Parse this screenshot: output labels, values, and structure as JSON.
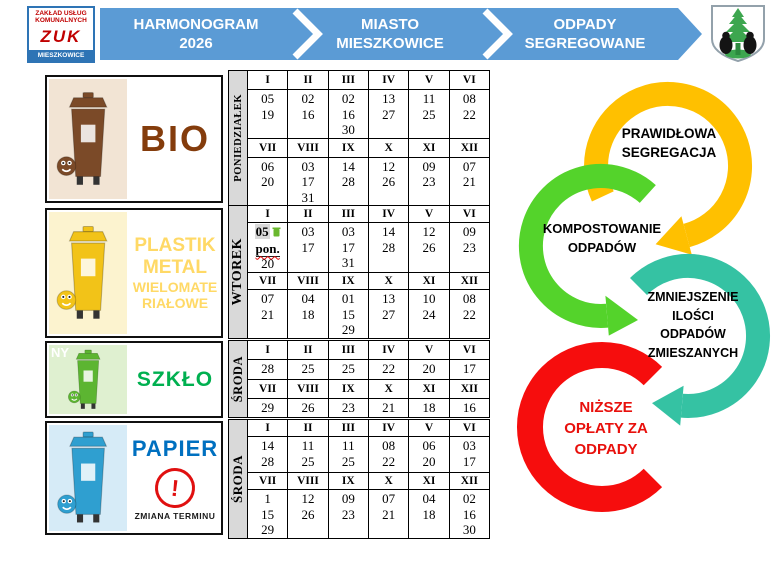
{
  "header": {
    "logo": {
      "line1": "ZAKŁAD USŁUG",
      "line2": "KOMUNALNYCH",
      "acronym": "ZUK",
      "city": "MIESZKOWICE"
    },
    "arrows": [
      {
        "line1": "HARMONOGRAM",
        "line2": "2026"
      },
      {
        "line1": "MIASTO",
        "line2": "MIESZKOWICE"
      },
      {
        "line1": "ODPADY",
        "line2": "SEGREGOWANE"
      }
    ],
    "banner_color": "#5b9bd5"
  },
  "waste_sections": [
    {
      "id": "bio",
      "label_lines": [
        "BIO"
      ],
      "day": "PONIEDZIAŁEK",
      "bin_color": "#7b4a28",
      "bin_bg": "#f2e4d4",
      "months_top": [
        "I",
        "II",
        "III",
        "IV",
        "V",
        "VI"
      ],
      "dates_top": [
        [
          "05",
          "19"
        ],
        [
          "02",
          "16"
        ],
        [
          "02",
          "16",
          "30"
        ],
        [
          "13",
          "27"
        ],
        [
          "11",
          "25"
        ],
        [
          "08",
          "22"
        ]
      ],
      "months_bottom": [
        "VII",
        "VIII",
        "IX",
        "X",
        "XI",
        "XII"
      ],
      "dates_bottom": [
        [
          "06",
          "20"
        ],
        [
          "03",
          "17",
          "31"
        ],
        [
          "14",
          "28"
        ],
        [
          "12",
          "26"
        ],
        [
          "09",
          "23"
        ],
        [
          "07",
          "21"
        ]
      ]
    },
    {
      "id": "plastik",
      "label_lines": [
        "PLASTIK",
        "METAL",
        "WIELOMATE",
        "RIAŁOWE"
      ],
      "day": "WTOREK",
      "bin_color": "#f2c318",
      "bin_bg": "#fcf3cf",
      "months_top": [
        "I",
        "II",
        "III",
        "IV",
        "V",
        "VI"
      ],
      "dates_top": [
        [
          "05",
          "pon.",
          "20"
        ],
        [
          "03",
          "17"
        ],
        [
          "03",
          "17",
          "31"
        ],
        [
          "14",
          "28"
        ],
        [
          "12",
          "26"
        ],
        [
          "09",
          "23"
        ]
      ],
      "special_cell": {
        "row": "top",
        "col": 0,
        "highlight": "05",
        "note": "pon.",
        "plain": "20",
        "icon": "green-bin-icon",
        "icon_color": "#6ab82e"
      },
      "months_bottom": [
        "VII",
        "VIII",
        "IX",
        "X",
        "XI",
        "XII"
      ],
      "dates_bottom": [
        [
          "07",
          "21"
        ],
        [
          "04",
          "18"
        ],
        [
          "01",
          "15",
          "29"
        ],
        [
          "13",
          "27"
        ],
        [
          "10",
          "24"
        ],
        [
          "08",
          "22"
        ]
      ]
    },
    {
      "id": "szklo",
      "label_lines": [
        "SZKŁO"
      ],
      "day": "ŚRODA",
      "overlay": "NY",
      "bin_color": "#5cb531",
      "bin_bg": "#dff0d0",
      "months_top": [
        "I",
        "II",
        "III",
        "IV",
        "V",
        "VI"
      ],
      "dates_top": [
        [
          "28"
        ],
        [
          "25"
        ],
        [
          "25"
        ],
        [
          "22"
        ],
        [
          "20"
        ],
        [
          "17"
        ]
      ],
      "months_bottom": [
        "VII",
        "VIII",
        "IX",
        "X",
        "XI",
        "XII"
      ],
      "dates_bottom": [
        [
          "29"
        ],
        [
          "26"
        ],
        [
          "23"
        ],
        [
          "21"
        ],
        [
          "18"
        ],
        [
          "16"
        ]
      ]
    },
    {
      "id": "papier",
      "label_lines": [
        "PAPIER"
      ],
      "day": "ŚRODA",
      "alert": "ZMIANA TERMINU",
      "bin_color": "#2f9fd0",
      "bin_bg": "#d6ebf7",
      "months_top": [
        "I",
        "II",
        "III",
        "IV",
        "V",
        "VI"
      ],
      "dates_top": [
        [
          "14",
          "28"
        ],
        [
          "11",
          "25"
        ],
        [
          "11",
          "25"
        ],
        [
          "08",
          "22"
        ],
        [
          "06",
          "20"
        ],
        [
          "03",
          "17"
        ]
      ],
      "months_bottom": [
        "VII",
        "VIII",
        "IX",
        "X",
        "XI",
        "XII"
      ],
      "dates_bottom": [
        [
          "1",
          "15",
          "29"
        ],
        [
          "12",
          "26"
        ],
        [
          "09",
          "23"
        ],
        [
          "07",
          "21"
        ],
        [
          "04",
          "18"
        ],
        [
          "02",
          "16",
          "30"
        ]
      ]
    }
  ],
  "cycle_diagram": [
    {
      "id": "segregation",
      "lines": [
        "PRAWIDŁOWA",
        "SEGREGACJA"
      ],
      "color": "#ffc000",
      "text_color": "#000000"
    },
    {
      "id": "composting",
      "lines": [
        "KOMPOSTOWANIE",
        "ODPADÓW"
      ],
      "color": "#54d32b",
      "text_color": "#000000"
    },
    {
      "id": "reduction",
      "lines": [
        "ZMNIEJSZENIE",
        "ILOŚCI",
        "ODPADÓW",
        "ZMIESZANYCH"
      ],
      "color": "#35c2a3",
      "text_color": "#000000"
    },
    {
      "id": "lower-fees",
      "lines": [
        "NIŻSZE",
        "OPŁATY ZA",
        "ODPADY"
      ],
      "color": "#f60d0d",
      "text_color": "#e8100c"
    }
  ]
}
